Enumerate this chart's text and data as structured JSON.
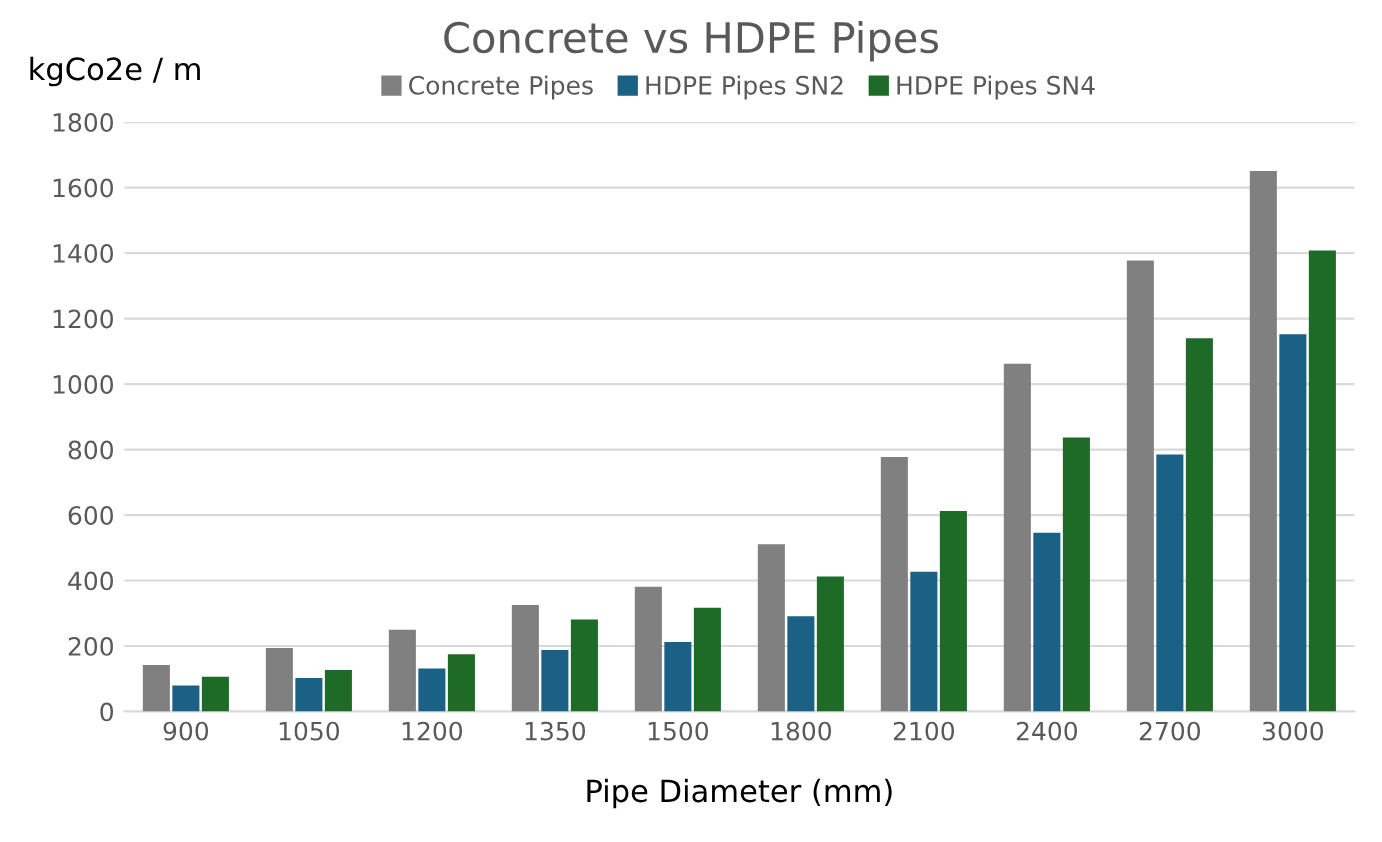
{
  "chart_data": {
    "type": "bar",
    "title": "Concrete vs HDPE Pipes",
    "ylabel": "kgCo2e / m",
    "xlabel": "Pipe Diameter (mm)",
    "categories": [
      "900",
      "1050",
      "1200",
      "1350",
      "1500",
      "1800",
      "2100",
      "2400",
      "2700",
      "3000"
    ],
    "series": [
      {
        "name": "Concrete Pipes",
        "color": "#808080",
        "values": [
          142,
          194,
          250,
          325,
          381,
          511,
          777,
          1062,
          1377,
          1651
        ]
      },
      {
        "name": "HDPE Pipes SN2",
        "color": "#1a6185",
        "values": [
          79,
          102,
          131,
          188,
          212,
          291,
          427,
          546,
          785,
          1152
        ]
      },
      {
        "name": "HDPE Pipes SN4",
        "color": "#1e6b28",
        "values": [
          106,
          127,
          175,
          281,
          317,
          412,
          612,
          837,
          1140,
          1408
        ]
      }
    ],
    "ylim": [
      0,
      1800
    ],
    "yticks": [
      0,
      200,
      400,
      600,
      800,
      1000,
      1200,
      1400,
      1600,
      1800
    ],
    "grid": "y",
    "legend": "top"
  }
}
